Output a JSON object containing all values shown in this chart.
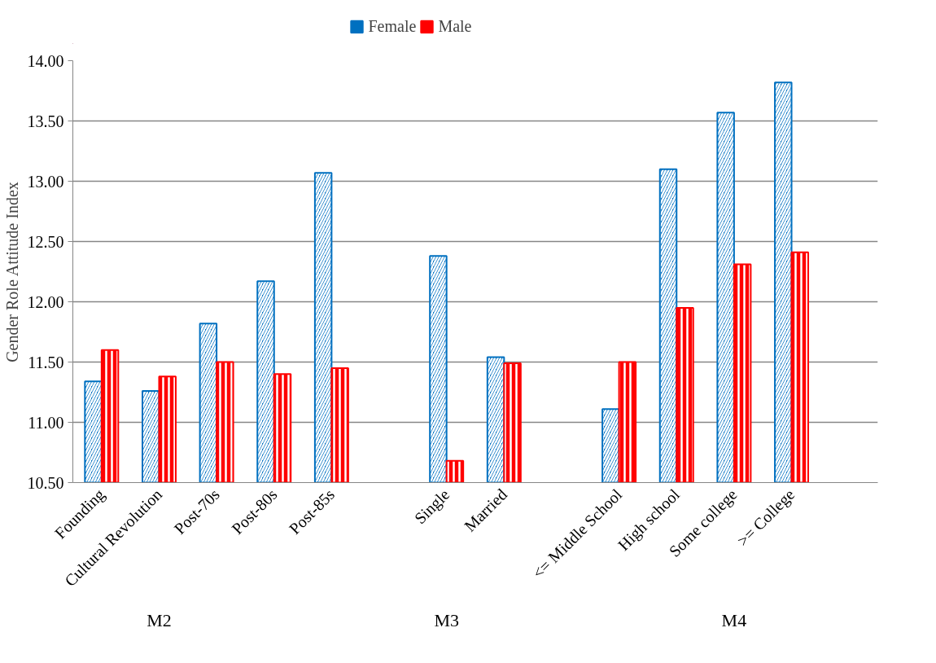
{
  "chart_data": {
    "type": "bar",
    "ylabel": "Gender Role Attitude Index",
    "categories": [
      "Founding",
      "Cultural Revolution",
      "Post-70s",
      "Post-80s",
      "Post-85s",
      null,
      "Single",
      "Married",
      null,
      "<= Middle School",
      "High school",
      "Some college",
      ">= College",
      null
    ],
    "series": [
      {
        "name": "Female",
        "color": "#0070c0",
        "values": [
          11.34,
          11.26,
          11.82,
          12.17,
          13.07,
          null,
          12.38,
          11.54,
          null,
          11.11,
          13.1,
          13.57,
          13.82,
          null
        ]
      },
      {
        "name": "Male",
        "color": "#ff0000",
        "values": [
          11.6,
          11.38,
          11.5,
          11.4,
          11.45,
          null,
          10.68,
          11.49,
          null,
          11.5,
          11.95,
          12.31,
          12.41,
          null
        ]
      }
    ],
    "ylim": [
      10.5,
      14.0
    ],
    "yticks": [
      {
        "value": 10.5,
        "label": "10.50"
      },
      {
        "value": 11.0,
        "label": "11.00"
      },
      {
        "value": 11.5,
        "label": "11.50"
      },
      {
        "value": 12.0,
        "label": "12.00"
      },
      {
        "value": 12.5,
        "label": "12.50"
      },
      {
        "value": 13.0,
        "label": "13.00"
      },
      {
        "value": 13.5,
        "label": "13.50"
      },
      {
        "value": 14.0,
        "label": "14.00"
      }
    ],
    "grid": "y",
    "legend": "top",
    "annotations": [
      "M2",
      "M3",
      "M4"
    ]
  }
}
